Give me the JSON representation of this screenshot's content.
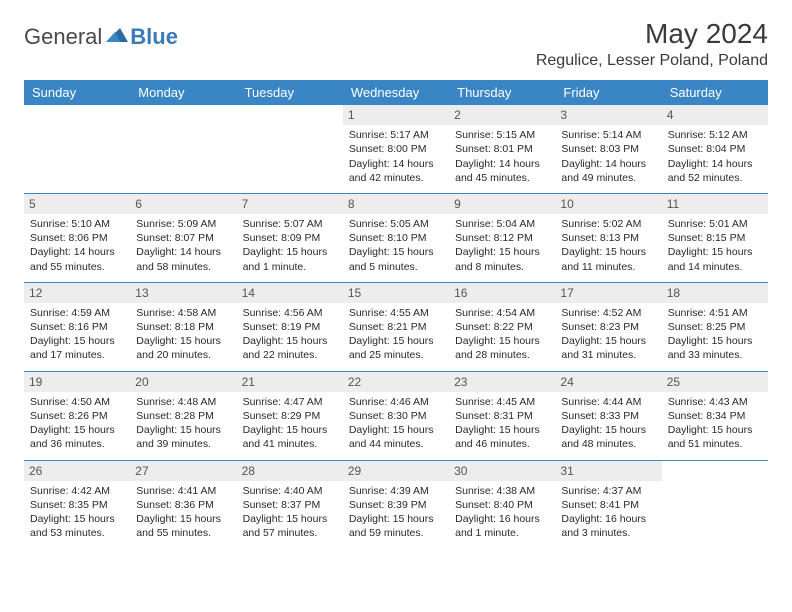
{
  "logo": {
    "text1": "General",
    "text2": "Blue"
  },
  "title": "May 2024",
  "location": "Regulice, Lesser Poland, Poland",
  "calendar": {
    "colors": {
      "header_bg": "#3a85c4",
      "header_text": "#ffffff",
      "daynum_bg": "#ededed",
      "border": "#3a85c4",
      "text": "#2a2a2a",
      "background": "#ffffff"
    },
    "day_headers": [
      "Sunday",
      "Monday",
      "Tuesday",
      "Wednesday",
      "Thursday",
      "Friday",
      "Saturday"
    ],
    "weeks": [
      [
        null,
        null,
        null,
        {
          "n": "1",
          "sr": "Sunrise: 5:17 AM",
          "ss": "Sunset: 8:00 PM",
          "dl1": "Daylight: 14 hours",
          "dl2": "and 42 minutes."
        },
        {
          "n": "2",
          "sr": "Sunrise: 5:15 AM",
          "ss": "Sunset: 8:01 PM",
          "dl1": "Daylight: 14 hours",
          "dl2": "and 45 minutes."
        },
        {
          "n": "3",
          "sr": "Sunrise: 5:14 AM",
          "ss": "Sunset: 8:03 PM",
          "dl1": "Daylight: 14 hours",
          "dl2": "and 49 minutes."
        },
        {
          "n": "4",
          "sr": "Sunrise: 5:12 AM",
          "ss": "Sunset: 8:04 PM",
          "dl1": "Daylight: 14 hours",
          "dl2": "and 52 minutes."
        }
      ],
      [
        {
          "n": "5",
          "sr": "Sunrise: 5:10 AM",
          "ss": "Sunset: 8:06 PM",
          "dl1": "Daylight: 14 hours",
          "dl2": "and 55 minutes."
        },
        {
          "n": "6",
          "sr": "Sunrise: 5:09 AM",
          "ss": "Sunset: 8:07 PM",
          "dl1": "Daylight: 14 hours",
          "dl2": "and 58 minutes."
        },
        {
          "n": "7",
          "sr": "Sunrise: 5:07 AM",
          "ss": "Sunset: 8:09 PM",
          "dl1": "Daylight: 15 hours",
          "dl2": "and 1 minute."
        },
        {
          "n": "8",
          "sr": "Sunrise: 5:05 AM",
          "ss": "Sunset: 8:10 PM",
          "dl1": "Daylight: 15 hours",
          "dl2": "and 5 minutes."
        },
        {
          "n": "9",
          "sr": "Sunrise: 5:04 AM",
          "ss": "Sunset: 8:12 PM",
          "dl1": "Daylight: 15 hours",
          "dl2": "and 8 minutes."
        },
        {
          "n": "10",
          "sr": "Sunrise: 5:02 AM",
          "ss": "Sunset: 8:13 PM",
          "dl1": "Daylight: 15 hours",
          "dl2": "and 11 minutes."
        },
        {
          "n": "11",
          "sr": "Sunrise: 5:01 AM",
          "ss": "Sunset: 8:15 PM",
          "dl1": "Daylight: 15 hours",
          "dl2": "and 14 minutes."
        }
      ],
      [
        {
          "n": "12",
          "sr": "Sunrise: 4:59 AM",
          "ss": "Sunset: 8:16 PM",
          "dl1": "Daylight: 15 hours",
          "dl2": "and 17 minutes."
        },
        {
          "n": "13",
          "sr": "Sunrise: 4:58 AM",
          "ss": "Sunset: 8:18 PM",
          "dl1": "Daylight: 15 hours",
          "dl2": "and 20 minutes."
        },
        {
          "n": "14",
          "sr": "Sunrise: 4:56 AM",
          "ss": "Sunset: 8:19 PM",
          "dl1": "Daylight: 15 hours",
          "dl2": "and 22 minutes."
        },
        {
          "n": "15",
          "sr": "Sunrise: 4:55 AM",
          "ss": "Sunset: 8:21 PM",
          "dl1": "Daylight: 15 hours",
          "dl2": "and 25 minutes."
        },
        {
          "n": "16",
          "sr": "Sunrise: 4:54 AM",
          "ss": "Sunset: 8:22 PM",
          "dl1": "Daylight: 15 hours",
          "dl2": "and 28 minutes."
        },
        {
          "n": "17",
          "sr": "Sunrise: 4:52 AM",
          "ss": "Sunset: 8:23 PM",
          "dl1": "Daylight: 15 hours",
          "dl2": "and 31 minutes."
        },
        {
          "n": "18",
          "sr": "Sunrise: 4:51 AM",
          "ss": "Sunset: 8:25 PM",
          "dl1": "Daylight: 15 hours",
          "dl2": "and 33 minutes."
        }
      ],
      [
        {
          "n": "19",
          "sr": "Sunrise: 4:50 AM",
          "ss": "Sunset: 8:26 PM",
          "dl1": "Daylight: 15 hours",
          "dl2": "and 36 minutes."
        },
        {
          "n": "20",
          "sr": "Sunrise: 4:48 AM",
          "ss": "Sunset: 8:28 PM",
          "dl1": "Daylight: 15 hours",
          "dl2": "and 39 minutes."
        },
        {
          "n": "21",
          "sr": "Sunrise: 4:47 AM",
          "ss": "Sunset: 8:29 PM",
          "dl1": "Daylight: 15 hours",
          "dl2": "and 41 minutes."
        },
        {
          "n": "22",
          "sr": "Sunrise: 4:46 AM",
          "ss": "Sunset: 8:30 PM",
          "dl1": "Daylight: 15 hours",
          "dl2": "and 44 minutes."
        },
        {
          "n": "23",
          "sr": "Sunrise: 4:45 AM",
          "ss": "Sunset: 8:31 PM",
          "dl1": "Daylight: 15 hours",
          "dl2": "and 46 minutes."
        },
        {
          "n": "24",
          "sr": "Sunrise: 4:44 AM",
          "ss": "Sunset: 8:33 PM",
          "dl1": "Daylight: 15 hours",
          "dl2": "and 48 minutes."
        },
        {
          "n": "25",
          "sr": "Sunrise: 4:43 AM",
          "ss": "Sunset: 8:34 PM",
          "dl1": "Daylight: 15 hours",
          "dl2": "and 51 minutes."
        }
      ],
      [
        {
          "n": "26",
          "sr": "Sunrise: 4:42 AM",
          "ss": "Sunset: 8:35 PM",
          "dl1": "Daylight: 15 hours",
          "dl2": "and 53 minutes."
        },
        {
          "n": "27",
          "sr": "Sunrise: 4:41 AM",
          "ss": "Sunset: 8:36 PM",
          "dl1": "Daylight: 15 hours",
          "dl2": "and 55 minutes."
        },
        {
          "n": "28",
          "sr": "Sunrise: 4:40 AM",
          "ss": "Sunset: 8:37 PM",
          "dl1": "Daylight: 15 hours",
          "dl2": "and 57 minutes."
        },
        {
          "n": "29",
          "sr": "Sunrise: 4:39 AM",
          "ss": "Sunset: 8:39 PM",
          "dl1": "Daylight: 15 hours",
          "dl2": "and 59 minutes."
        },
        {
          "n": "30",
          "sr": "Sunrise: 4:38 AM",
          "ss": "Sunset: 8:40 PM",
          "dl1": "Daylight: 16 hours",
          "dl2": "and 1 minute."
        },
        {
          "n": "31",
          "sr": "Sunrise: 4:37 AM",
          "ss": "Sunset: 8:41 PM",
          "dl1": "Daylight: 16 hours",
          "dl2": "and 3 minutes."
        },
        null
      ]
    ]
  }
}
